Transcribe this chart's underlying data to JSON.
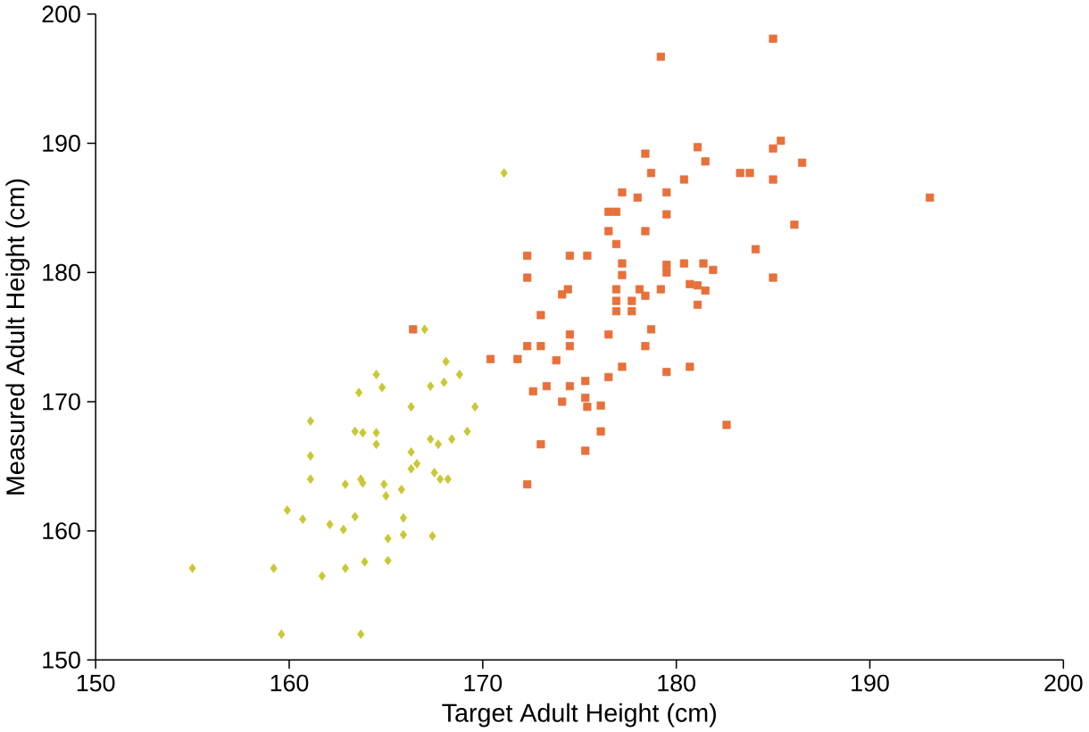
{
  "chart_data": {
    "type": "scatter",
    "xlabel": "Target Adult Height (cm)",
    "ylabel": "Measured Adult Height (cm)",
    "xlim": [
      150,
      200
    ],
    "ylim": [
      150,
      200
    ],
    "xticks": [
      150,
      160,
      170,
      180,
      190,
      200
    ],
    "yticks": [
      150,
      160,
      170,
      180,
      190,
      200
    ],
    "grid": false,
    "series": [
      {
        "color": "#c9c834",
        "marker": "diamond",
        "x": [
          155.0,
          159.2,
          159.6,
          163.7,
          161.7,
          162.9,
          163.9,
          165.1,
          159.9,
          160.7,
          162.1,
          162.8,
          163.4,
          165.1,
          165.9,
          165.9,
          167.4,
          161.1,
          161.1,
          161.1,
          162.9,
          163.7,
          163.8,
          164.9,
          165.0,
          165.8,
          166.3,
          166.6,
          167.5,
          167.8,
          168.2,
          163.4,
          163.8,
          164.5,
          164.5,
          166.3,
          167.3,
          167.7,
          168.4,
          169.2,
          169.6,
          166.3,
          163.6,
          164.5,
          164.8,
          167.3,
          168.0,
          168.8,
          168.1,
          167.0,
          171.1
        ],
        "values": [
          157.1,
          157.1,
          152.0,
          152.0,
          156.5,
          157.1,
          157.6,
          157.7,
          161.6,
          160.9,
          160.5,
          160.1,
          161.1,
          159.4,
          159.7,
          161.0,
          159.6,
          168.5,
          165.8,
          164.0,
          163.6,
          164.0,
          163.7,
          163.6,
          162.7,
          163.2,
          164.8,
          165.2,
          164.5,
          164.0,
          164.0,
          167.7,
          167.6,
          167.6,
          166.7,
          166.1,
          167.1,
          166.7,
          167.1,
          167.7,
          169.6,
          169.6,
          170.7,
          172.1,
          171.1,
          171.2,
          171.5,
          172.1,
          173.1,
          175.6,
          187.7
        ]
      },
      {
        "color": "#e8703a",
        "marker": "square",
        "x": [
          185.0,
          179.2,
          178.4,
          181.1,
          181.5,
          178.7,
          180.4,
          183.3,
          183.8,
          185.0,
          185.0,
          185.4,
          186.5,
          193.1,
          177.2,
          178.0,
          179.5,
          176.5,
          176.9,
          179.5,
          176.5,
          178.4,
          176.9,
          186.1,
          184.1,
          172.3,
          174.5,
          175.4,
          172.3,
          177.2,
          177.2,
          179.5,
          180.4,
          181.4,
          181.9,
          185.0,
          179.5,
          174.4,
          174.1,
          176.9,
          178.1,
          179.2,
          180.7,
          181.1,
          181.5,
          176.9,
          177.7,
          178.4,
          181.1,
          176.9,
          177.7,
          173.0,
          174.5,
          176.5,
          178.7,
          174.5,
          172.3,
          173.0,
          178.4,
          170.4,
          171.8,
          173.8,
          177.2,
          179.5,
          180.7,
          176.5,
          175.3,
          172.6,
          173.3,
          174.5,
          175.3,
          174.1,
          175.4,
          176.1,
          176.1,
          173.0,
          175.3,
          182.6,
          172.3,
          166.4
        ],
        "values": [
          198.1,
          196.7,
          189.2,
          189.7,
          188.6,
          187.7,
          187.2,
          187.7,
          187.7,
          187.2,
          189.6,
          190.2,
          188.5,
          185.8,
          186.2,
          185.8,
          186.2,
          184.7,
          184.7,
          184.5,
          183.2,
          183.2,
          182.2,
          183.7,
          181.8,
          181.3,
          181.3,
          181.3,
          179.6,
          180.7,
          179.8,
          180.6,
          180.7,
          180.7,
          180.2,
          179.6,
          180.0,
          178.7,
          178.3,
          178.7,
          178.7,
          178.7,
          179.1,
          179.0,
          178.6,
          177.8,
          177.8,
          178.2,
          177.5,
          177.0,
          177.0,
          176.7,
          175.2,
          175.2,
          175.6,
          174.3,
          174.3,
          174.3,
          174.3,
          173.3,
          173.3,
          173.2,
          172.7,
          172.3,
          172.7,
          171.9,
          171.6,
          170.8,
          171.2,
          171.2,
          170.3,
          170.0,
          169.6,
          169.7,
          167.7,
          166.7,
          166.2,
          168.2,
          163.6,
          175.6
        ]
      }
    ]
  }
}
